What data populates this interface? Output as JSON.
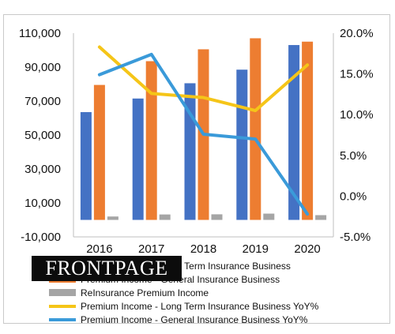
{
  "chart_data": {
    "type": "bar",
    "categories": [
      "2016",
      "2017",
      "2018",
      "2019",
      "2020"
    ],
    "bar_series": [
      {
        "name": "Premium Income - Long Term Insurance Business",
        "color": "#4472c4",
        "values": [
          63500,
          71500,
          80500,
          88500,
          103000
        ]
      },
      {
        "name": "Premium Income - General Insurance Business",
        "color": "#ed7d31",
        "values": [
          79500,
          93500,
          100500,
          107000,
          105000
        ]
      },
      {
        "name": "ReInsurance Premium Income",
        "color": "#a5a5a5",
        "values": [
          2000,
          3200,
          3300,
          3700,
          2800
        ]
      }
    ],
    "line_series": [
      {
        "name": "Premium Income - Long Term Insurance Business YoY%",
        "color": "#f5c518",
        "values": [
          18.3,
          12.6,
          12.1,
          10.5,
          16.1
        ]
      },
      {
        "name": "Premium Income - General Insurance Business YoY%",
        "color": "#3a9ad9",
        "values": [
          14.9,
          17.4,
          7.6,
          7.0,
          -2.2
        ]
      }
    ],
    "y_left": {
      "min": -10000,
      "max": 110000,
      "ticks": [
        "-10,000",
        "10,000",
        "30,000",
        "50,000",
        "70,000",
        "90,000",
        "110,000"
      ]
    },
    "y_right": {
      "min": -5,
      "max": 20,
      "ticks": [
        "-5.0%",
        "0.0%",
        "5.0%",
        "10.0%",
        "15.0%",
        "20.0%"
      ]
    },
    "legend_position": "bottom",
    "gridlines": false
  },
  "logo": {
    "text": "FRONTPAGE"
  }
}
